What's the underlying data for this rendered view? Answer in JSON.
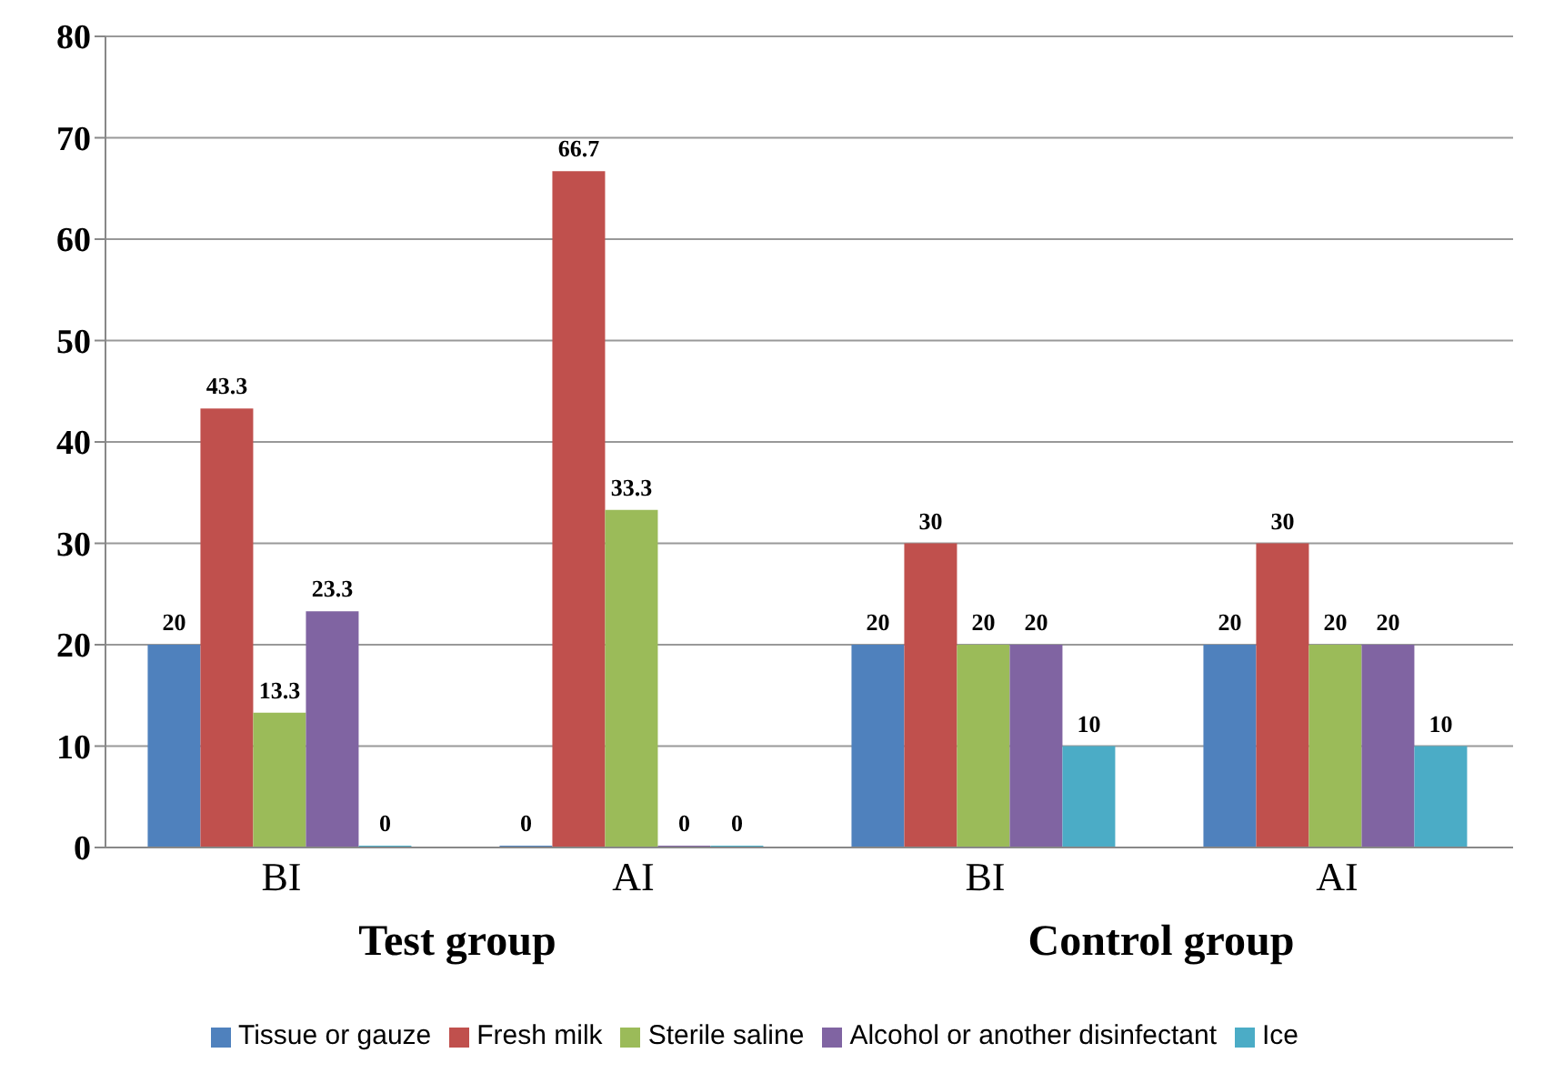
{
  "chart_data": {
    "type": "bar",
    "categories": [
      "BI",
      "AI",
      "BI",
      "AI"
    ],
    "series": [
      {
        "name": "Tissue or gauze",
        "color": "#4f81bd",
        "values": [
          20,
          0,
          20,
          20
        ]
      },
      {
        "name": "Fresh milk",
        "color": "#c0504d",
        "values": [
          43.3,
          66.7,
          30,
          30
        ]
      },
      {
        "name": "Sterile saline",
        "color": "#9bbb59",
        "values": [
          13.3,
          33.3,
          20,
          20
        ]
      },
      {
        "name": "Alcohol or another disinfectant",
        "color": "#8064a2",
        "values": [
          23.3,
          0,
          20,
          20
        ]
      },
      {
        "name": "Ice",
        "color": "#4bacc6",
        "values": [
          0,
          0,
          10,
          10
        ]
      }
    ],
    "ylim": [
      0,
      80
    ],
    "yticks": [
      0,
      10,
      20,
      30,
      40,
      50,
      60,
      70,
      80
    ],
    "grid": "y",
    "legend": "bottom",
    "data_labels": true,
    "annotations": [
      "Test group",
      "Control group"
    ]
  }
}
